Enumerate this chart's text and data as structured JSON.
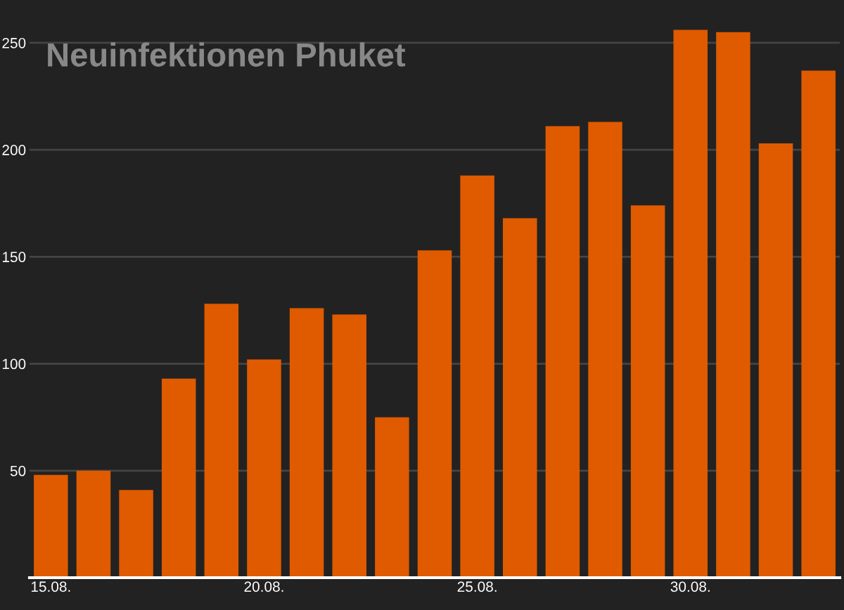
{
  "chart_data": {
    "type": "bar",
    "title": "Neuinfektionen Phuket",
    "categories": [
      "15.08.",
      null,
      null,
      null,
      null,
      "20.08.",
      null,
      null,
      null,
      null,
      "25.08.",
      null,
      null,
      null,
      null,
      "30.08.",
      null,
      null,
      null
    ],
    "values": [
      48,
      50,
      41,
      93,
      128,
      102,
      126,
      123,
      75,
      153,
      188,
      168,
      211,
      213,
      174,
      256,
      255,
      203,
      237
    ],
    "color": "#e05a00",
    "ylim": [
      0,
      270
    ],
    "yticks": [
      50,
      100,
      150,
      200,
      250
    ],
    "grid": "y"
  }
}
